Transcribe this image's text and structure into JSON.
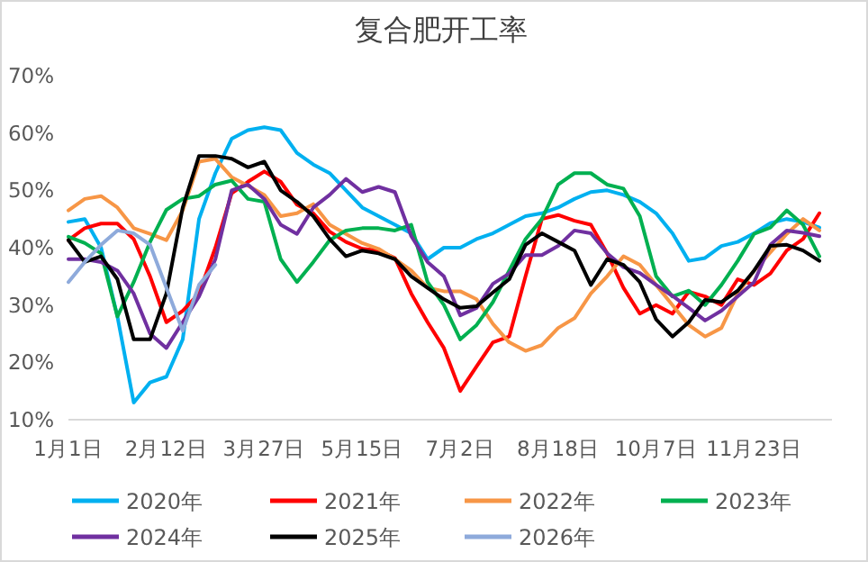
{
  "chart_data": {
    "type": "line",
    "title": "复合肥开工率",
    "categories": [
      "1月1日",
      null,
      null,
      null,
      null,
      null,
      "2月12日",
      null,
      null,
      null,
      null,
      null,
      "3月27日",
      null,
      null,
      null,
      null,
      null,
      "5月15日",
      null,
      null,
      null,
      null,
      null,
      "7月2日",
      null,
      null,
      null,
      null,
      null,
      "8月18日",
      null,
      null,
      null,
      null,
      null,
      "10月7日",
      null,
      null,
      null,
      null,
      null,
      "11月23日",
      null,
      null,
      null,
      null
    ],
    "ylim": [
      10,
      70
    ],
    "yticks": [
      {
        "value": 10,
        "label": "10%"
      },
      {
        "value": 20,
        "label": "20%"
      },
      {
        "value": 30,
        "label": "30%"
      },
      {
        "value": 40,
        "label": "40%"
      },
      {
        "value": 50,
        "label": "50%"
      },
      {
        "value": 60,
        "label": "60%"
      },
      {
        "value": 70,
        "label": "70%"
      }
    ],
    "grid": false,
    "legend": "bottom",
    "series": [
      {
        "name": "2020年",
        "color": "#00b0f0",
        "values": [
          44.5,
          45,
          40,
          28,
          13,
          16.5,
          17.5,
          24,
          45,
          53,
          59,
          60.5,
          61,
          60.5,
          56.5,
          54.5,
          53,
          50,
          47,
          45.5,
          44,
          42.5,
          38,
          40,
          40,
          41.5,
          42.5,
          44,
          45.5,
          46,
          47,
          48.5,
          49.7,
          50,
          49.2,
          48,
          46,
          42.5,
          37.7,
          38.2,
          40.3,
          41,
          42.5,
          44.3,
          45,
          44.5,
          43.5
        ]
      },
      {
        "name": "2021年",
        "color": "#ff0000",
        "values": [
          41.3,
          43.4,
          44.2,
          44.2,
          41.5,
          35,
          27,
          29,
          32,
          40,
          49.5,
          51.5,
          53.3,
          51.5,
          47.5,
          46,
          42.8,
          41,
          39.8,
          39.5,
          38.2,
          32,
          27,
          22.5,
          15,
          19.3,
          23.5,
          24.5,
          35,
          45,
          45.7,
          44.7,
          44,
          39,
          33,
          28.5,
          30,
          28.5,
          32.3,
          31.5,
          30,
          34.5,
          33.5,
          35.5,
          39.5,
          41.5,
          46
        ]
      },
      {
        "name": "2022年",
        "color": "#f79646",
        "values": [
          46.5,
          48.5,
          49,
          47,
          43.4,
          42.4,
          41.3,
          46.5,
          55,
          55.5,
          52.3,
          50.8,
          49.2,
          45.5,
          46,
          47.6,
          44,
          42.4,
          40.8,
          39.8,
          38,
          36,
          33,
          32.4,
          32.4,
          31,
          26.7,
          23.5,
          22,
          23,
          26,
          27.7,
          32,
          35,
          38.5,
          37,
          33.5,
          30,
          26.5,
          24.5,
          26,
          32,
          36,
          39.2,
          42.4,
          45,
          43
        ]
      },
      {
        "name": "2023年",
        "color": "#00b050",
        "values": [
          41.9,
          40.8,
          39,
          28,
          34,
          41,
          46.6,
          48.5,
          49,
          51,
          51.7,
          48.5,
          48,
          38,
          34,
          37.5,
          41.3,
          43,
          43.4,
          43.4,
          43,
          44,
          34,
          30,
          24,
          26.5,
          30.5,
          36,
          41.5,
          45,
          51,
          53,
          53,
          51,
          50.3,
          45.5,
          35,
          31.5,
          32.5,
          30,
          33.5,
          37.7,
          42.4,
          43.5,
          46.5,
          44,
          38.5
        ]
      },
      {
        "name": "2024年",
        "color": "#7030a0",
        "values": [
          38,
          38,
          37.5,
          36,
          32,
          25,
          22.5,
          27,
          31.5,
          38,
          50,
          51,
          48.5,
          44,
          42.4,
          47,
          49.2,
          52,
          49.7,
          50.6,
          49.7,
          42,
          37.5,
          35,
          28.2,
          29.5,
          33.7,
          35.5,
          38.7,
          38.7,
          40.3,
          43,
          42.5,
          39,
          36.6,
          35.6,
          33.5,
          31.6,
          29.5,
          27.3,
          29,
          31.5,
          34,
          40.5,
          43,
          42.6,
          42
        ]
      },
      {
        "name": "2025年",
        "color": "#000000",
        "values": [
          41.3,
          37.5,
          38.5,
          34.5,
          24,
          24,
          32,
          47,
          56,
          56,
          55.5,
          54,
          55,
          50,
          48,
          45.5,
          41.5,
          38.5,
          39.5,
          39,
          38,
          35,
          33,
          31,
          29.5,
          29.8,
          32.2,
          34.5,
          40.5,
          42.5,
          41,
          39.5,
          33.5,
          38,
          37,
          34,
          27.5,
          24.5,
          27,
          30.9,
          30.5,
          32.5,
          36,
          40.3,
          40.5,
          39.5,
          37.7
        ]
      },
      {
        "name": "2026年",
        "color": "#8eaadb",
        "values": [
          34,
          37.5,
          40.5,
          43,
          42.5,
          40.5,
          33,
          25.5,
          33.5,
          37,
          null,
          null,
          null,
          null,
          null,
          null,
          null,
          null,
          null,
          null,
          null,
          null,
          null,
          null,
          null,
          null,
          null,
          null,
          null,
          null,
          null,
          null,
          null,
          null,
          null,
          null,
          null,
          null,
          null,
          null,
          null,
          null,
          null,
          null,
          null,
          null,
          null
        ]
      }
    ]
  }
}
